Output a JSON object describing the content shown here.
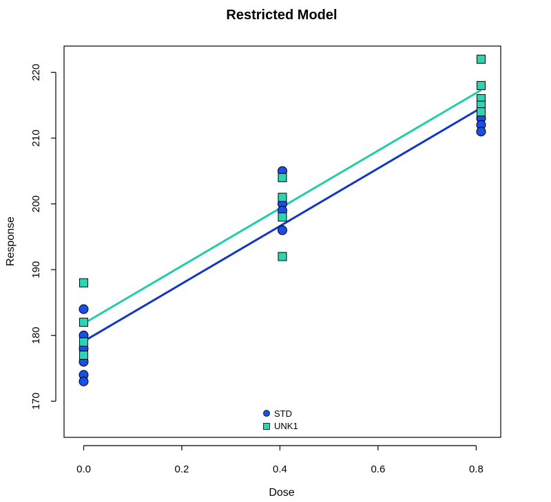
{
  "chart_data": {
    "type": "scatter",
    "title": "Restricted Model",
    "xlabel": "Dose",
    "ylabel": "Response",
    "xlim": [
      -0.04,
      0.85
    ],
    "ylim": [
      164.5,
      224
    ],
    "x_ticks": [
      "0.0",
      "0.2",
      "0.4",
      "0.6",
      "0.8"
    ],
    "y_ticks": [
      "170",
      "180",
      "190",
      "200",
      "210",
      "220"
    ],
    "grid": false,
    "legend_position": "bottom-center",
    "series": [
      {
        "name": "STD",
        "marker": "circle",
        "color": "#1a4fe6",
        "line_color": "#1236c2",
        "points": [
          {
            "x": 0.0,
            "y": 184
          },
          {
            "x": 0.0,
            "y": 180
          },
          {
            "x": 0.0,
            "y": 178
          },
          {
            "x": 0.0,
            "y": 176
          },
          {
            "x": 0.0,
            "y": 174
          },
          {
            "x": 0.0,
            "y": 173
          },
          {
            "x": 0.405,
            "y": 205
          },
          {
            "x": 0.405,
            "y": 200
          },
          {
            "x": 0.405,
            "y": 199
          },
          {
            "x": 0.405,
            "y": 196
          },
          {
            "x": 0.81,
            "y": 213
          },
          {
            "x": 0.81,
            "y": 212
          },
          {
            "x": 0.81,
            "y": 211
          }
        ],
        "fit_line": [
          {
            "x": 0.0,
            "y": 179.1
          },
          {
            "x": 0.81,
            "y": 214.6
          }
        ]
      },
      {
        "name": "UNK1",
        "marker": "square",
        "color": "#2ed3b4",
        "line_color": "#1fcea8",
        "points": [
          {
            "x": 0.0,
            "y": 188
          },
          {
            "x": 0.0,
            "y": 182
          },
          {
            "x": 0.0,
            "y": 179
          },
          {
            "x": 0.0,
            "y": 177
          },
          {
            "x": 0.405,
            "y": 204
          },
          {
            "x": 0.405,
            "y": 201
          },
          {
            "x": 0.405,
            "y": 198
          },
          {
            "x": 0.405,
            "y": 192
          },
          {
            "x": 0.81,
            "y": 222
          },
          {
            "x": 0.81,
            "y": 218
          },
          {
            "x": 0.81,
            "y": 216
          },
          {
            "x": 0.81,
            "y": 215
          },
          {
            "x": 0.81,
            "y": 214
          }
        ],
        "fit_line": [
          {
            "x": 0.0,
            "y": 181.8
          },
          {
            "x": 0.81,
            "y": 217.3
          }
        ]
      }
    ]
  }
}
